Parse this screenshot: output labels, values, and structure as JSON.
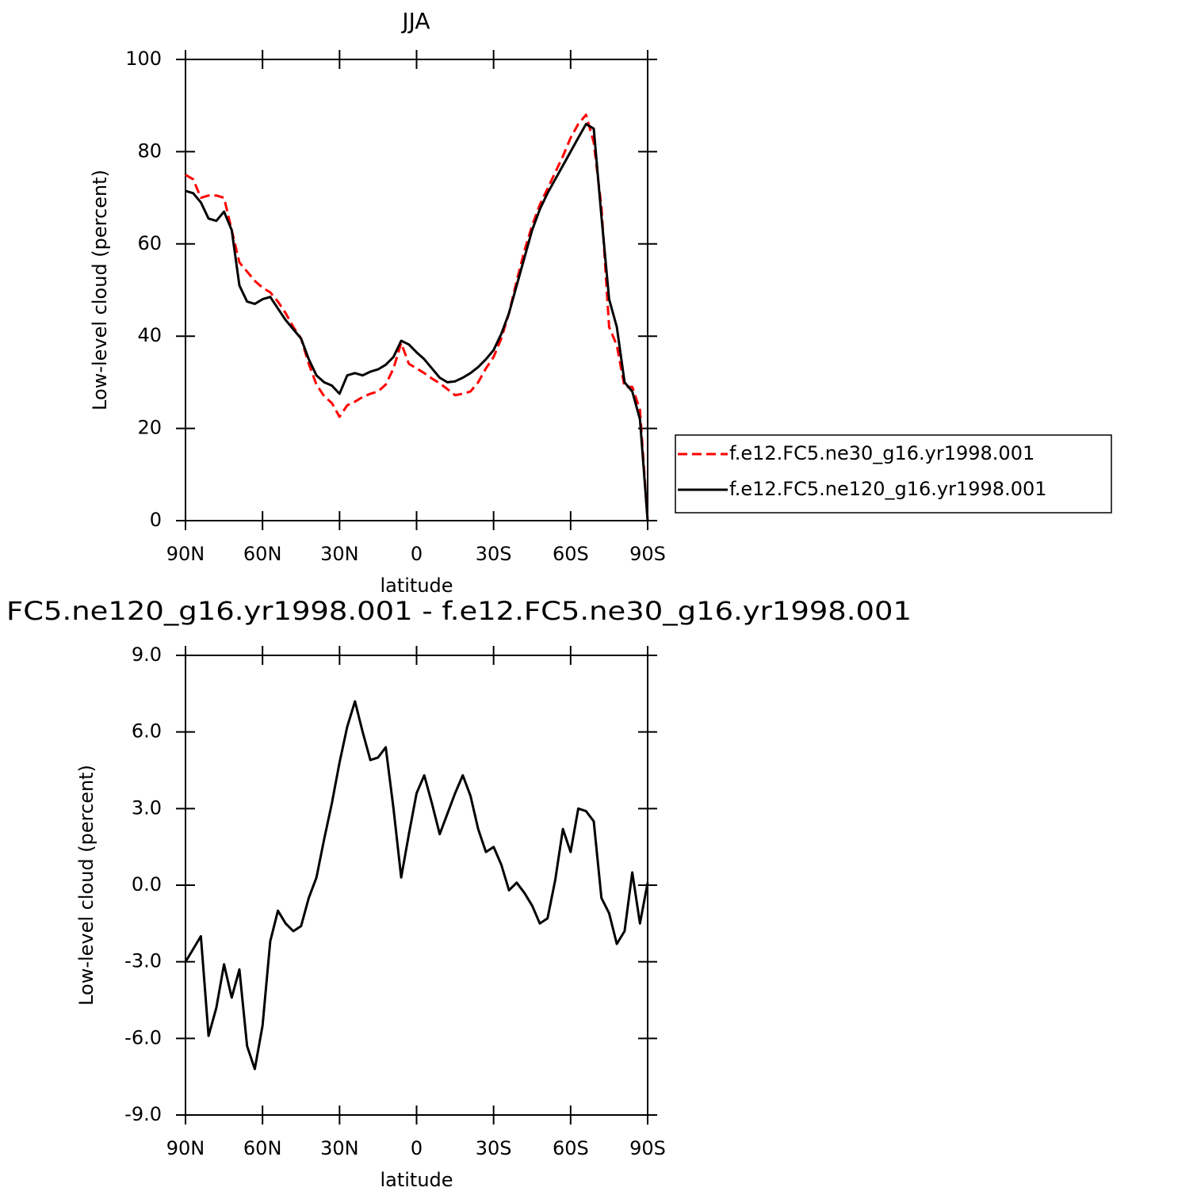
{
  "chart_data": [
    {
      "type": "line",
      "title": "JJA",
      "ylabel": "Low-level cloud (percent)",
      "xlabel": "latitude",
      "x": [
        90,
        87,
        84,
        81,
        78,
        75,
        72,
        69,
        66,
        63,
        60,
        57,
        54,
        51,
        48,
        45,
        42,
        39,
        36,
        33,
        30,
        27,
        24,
        21,
        18,
        15,
        12,
        9,
        6,
        3,
        0,
        -3,
        -6,
        -9,
        -12,
        -15,
        -18,
        -21,
        -24,
        -27,
        -30,
        -33,
        -36,
        -39,
        -42,
        -45,
        -48,
        -51,
        -54,
        -57,
        -60,
        -63,
        -66,
        -69,
        -72,
        -75,
        -78,
        -81,
        -84,
        -87,
        -90
      ],
      "xlim": [
        90,
        -90
      ],
      "xticks": [
        {
          "value": 90,
          "label": "90N"
        },
        {
          "value": 60,
          "label": "60N"
        },
        {
          "value": 30,
          "label": "30N"
        },
        0,
        {
          "value": -30,
          "label": "30S"
        },
        {
          "value": -60,
          "label": "60S"
        },
        {
          "value": -90,
          "label": "90S"
        }
      ],
      "ylim": [
        0,
        100
      ],
      "yticks": [
        0,
        20,
        40,
        60,
        80,
        100
      ],
      "legend": "right",
      "series": [
        {
          "name": "f.e12.FC5.ne30_g16.yr1998.001",
          "color": "#ff0000",
          "line_style": "dashed",
          "values": [
            75,
            74,
            70,
            70.5,
            70.5,
            70,
            63,
            56,
            54,
            52,
            50.5,
            49.5,
            47.5,
            45,
            42,
            39.5,
            34,
            29.5,
            27,
            25.5,
            22.5,
            25,
            25.8,
            26.8,
            27.5,
            28,
            29.5,
            33,
            38.5,
            34,
            33,
            32,
            30.8,
            29.8,
            28.5,
            27.2,
            27.5,
            28,
            30,
            33,
            35.5,
            39.5,
            45,
            52,
            58.5,
            64,
            68.5,
            72,
            75.5,
            79,
            83,
            86,
            88,
            82,
            68,
            42,
            38,
            29,
            29,
            24,
            0
          ]
        },
        {
          "name": "f.e12.FC5.ne120_g16.yr1998.001",
          "color": "#000000",
          "line_style": "solid",
          "values": [
            71.5,
            71,
            69,
            65.5,
            65,
            67,
            63,
            51,
            47.5,
            47,
            48,
            48.5,
            46,
            43.5,
            41.5,
            39.5,
            35,
            31.5,
            30,
            29.3,
            27.5,
            31.5,
            32,
            31.5,
            32.3,
            32.8,
            33.8,
            35.5,
            39,
            38.2,
            36.5,
            35,
            33,
            31,
            30,
            30.2,
            31,
            32,
            33.3,
            35,
            37,
            40.5,
            45,
            51,
            57,
            63,
            67.5,
            71,
            74,
            77,
            80,
            83,
            86,
            85,
            66,
            48,
            42,
            30,
            28,
            22,
            0
          ]
        }
      ]
    },
    {
      "type": "line",
      "title": "FC5.ne120_g16.yr1998.001 - f.e12.FC5.ne30_g16.yr1998.001",
      "ylabel": "Low-level cloud (percent)",
      "xlabel": "latitude",
      "x": [
        90,
        87,
        84,
        81,
        78,
        75,
        72,
        69,
        66,
        63,
        60,
        57,
        54,
        51,
        48,
        45,
        42,
        39,
        36,
        33,
        30,
        27,
        24,
        21,
        18,
        15,
        12,
        9,
        6,
        3,
        0,
        -3,
        -6,
        -9,
        -12,
        -15,
        -18,
        -21,
        -24,
        -27,
        -30,
        -33,
        -36,
        -39,
        -42,
        -45,
        -48,
        -51,
        -54,
        -57,
        -60,
        -63,
        -66,
        -69,
        -72,
        -75,
        -78,
        -81,
        -84,
        -87,
        -90
      ],
      "xlim": [
        90,
        -90
      ],
      "xticks": [
        {
          "value": 90,
          "label": "90N"
        },
        {
          "value": 60,
          "label": "60N"
        },
        {
          "value": 30,
          "label": "30N"
        },
        0,
        {
          "value": -30,
          "label": "30S"
        },
        {
          "value": -60,
          "label": "60S"
        },
        {
          "value": -90,
          "label": "90S"
        }
      ],
      "ylim": [
        -9,
        9
      ],
      "yticks": [
        {
          "value": -9,
          "label": "-9.0"
        },
        {
          "value": -6,
          "label": "-6.0"
        },
        {
          "value": -3,
          "label": "-3.0"
        },
        {
          "value": 0,
          "label": "0.0"
        },
        {
          "value": 3,
          "label": "3.0"
        },
        {
          "value": 6,
          "label": "6.0"
        },
        {
          "value": 9,
          "label": "9.0"
        }
      ],
      "series": [
        {
          "color": "#000000",
          "line_style": "solid",
          "values": [
            -3,
            -2.5,
            -2,
            -5.9,
            -4.8,
            -3.1,
            -4.4,
            -3.3,
            -6.3,
            -7.2,
            -5.5,
            -2.2,
            -1,
            -1.5,
            -1.8,
            -1.6,
            -0.5,
            0.3,
            1.8,
            3.2,
            4.8,
            6.2,
            7.2,
            6,
            4.9,
            5,
            5.4,
            3,
            0.3,
            2,
            3.6,
            4.3,
            3.2,
            2,
            2.8,
            3.6,
            4.3,
            3.5,
            2.2,
            1.3,
            1.5,
            0.8,
            -0.2,
            0.1,
            -0.3,
            -0.8,
            -1.5,
            -1.3,
            0.2,
            2.2,
            1.3,
            3,
            2.9,
            2.5,
            -0.5,
            -1.1,
            -2.3,
            -1.8,
            0.5,
            -1.5,
            0.1
          ]
        }
      ]
    }
  ]
}
